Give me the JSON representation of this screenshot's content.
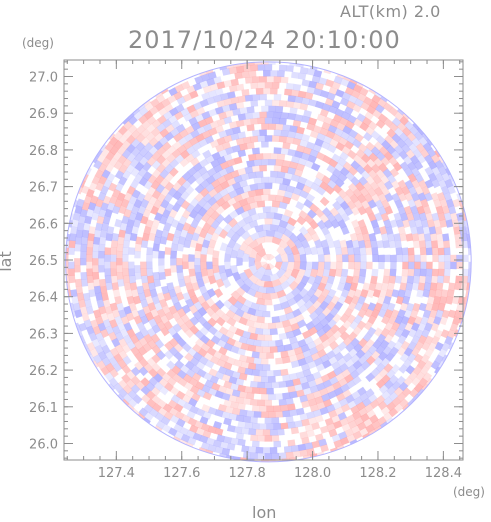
{
  "header": {
    "altitude_label": "ALT(km)  2.0",
    "timestamp": "2017/10/24  20:10:00"
  },
  "chart_data": {
    "type": "heatmap",
    "title": "2017/10/24  20:10:00",
    "subtitle": "ALT(km)  2.0",
    "xlabel": "lon",
    "ylabel": "lat",
    "x_unit": "(deg)",
    "y_unit": "(deg)",
    "xlim": [
      127.24,
      128.46
    ],
    "ylim": [
      25.955,
      27.045
    ],
    "xticks": [
      127.4,
      127.6,
      127.8,
      128.0,
      128.2,
      128.4
    ],
    "xtick_labels": [
      "127.4",
      "127.6",
      "127.8",
      "128.0",
      "128.2",
      "128.4"
    ],
    "yticks": [
      26.0,
      26.1,
      26.2,
      26.3,
      26.4,
      26.5,
      26.6,
      26.7,
      26.8,
      26.9,
      27.0
    ],
    "ytick_labels": [
      "26.0",
      "26.1",
      "26.2",
      "26.3",
      "26.4",
      "26.5",
      "26.6",
      "26.7",
      "26.8",
      "26.9",
      "27.0"
    ],
    "domain": {
      "shape": "circle",
      "center_lon": 127.865,
      "center_lat": 26.495,
      "radius_lon": 0.62,
      "radius_lat": 0.545
    },
    "colormap": {
      "negative": "#8c8cff",
      "zero": "#ffffff",
      "positive": "#ff8c8c"
    },
    "frame_color": "#8c8c8c"
  }
}
